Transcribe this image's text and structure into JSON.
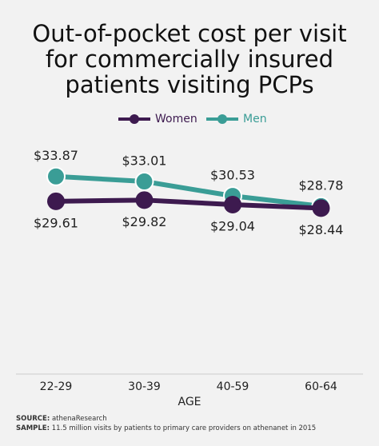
{
  "chart_data": {
    "type": "line",
    "title": "Out-of-pocket cost per visit for commercially insured patients visiting PCPs",
    "categories": [
      "22-29",
      "30-39",
      "40-59",
      "60-64"
    ],
    "x_label": "AGE",
    "legend": "top",
    "series": [
      {
        "name": "Women",
        "color": "#3d1a4f",
        "values": [
          29.61,
          29.82,
          29.04,
          28.44
        ],
        "value_labels": [
          "$29.61",
          "$29.82",
          "$29.04",
          "$28.44"
        ]
      },
      {
        "name": "Men",
        "color": "#3a9d96",
        "values": [
          33.87,
          33.01,
          30.53,
          28.78
        ],
        "value_labels": [
          "$33.87",
          "$33.01",
          "$30.53",
          "$28.78"
        ]
      }
    ]
  },
  "footer": {
    "source": {
      "label": "SOURCE:",
      "text": "athenaResearch"
    },
    "sample": {
      "label": "SAMPLE:",
      "text": "11.5 million visits by patients to primary care providers on athenanet in 2015"
    }
  }
}
